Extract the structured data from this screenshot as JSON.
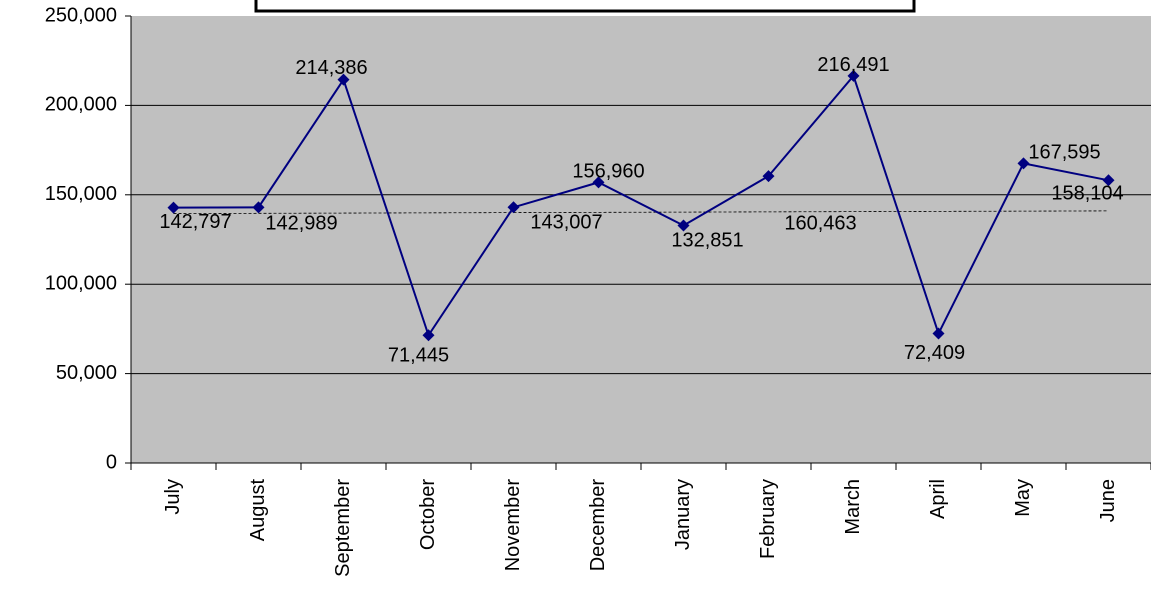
{
  "chart_data": {
    "type": "line",
    "categories": [
      "July",
      "August",
      "September",
      "October",
      "November",
      "December",
      "January",
      "February",
      "March",
      "April",
      "May",
      "June"
    ],
    "values": [
      142797,
      142989,
      214386,
      71445,
      143007,
      156960,
      132851,
      160463,
      216491,
      72409,
      167595,
      158104
    ],
    "value_labels": [
      "142,797",
      "142,989",
      "214,386",
      "71,445",
      "143,007",
      "156,960",
      "132,851",
      "160,463",
      "216,491",
      "72,409",
      "167,595",
      "158,104"
    ],
    "color": "#000080",
    "trendline": [
      139500,
      141000
    ],
    "ylim": [
      0,
      250000
    ],
    "yticks": [
      0,
      {
        "value": 50000,
        "label": "50,000"
      },
      {
        "value": 100000,
        "label": "100,000"
      },
      {
        "value": 150000,
        "label": "150,000"
      },
      {
        "value": 200000,
        "label": "200,000"
      },
      {
        "value": 250000,
        "label": "250,000"
      }
    ],
    "grid": true
  }
}
